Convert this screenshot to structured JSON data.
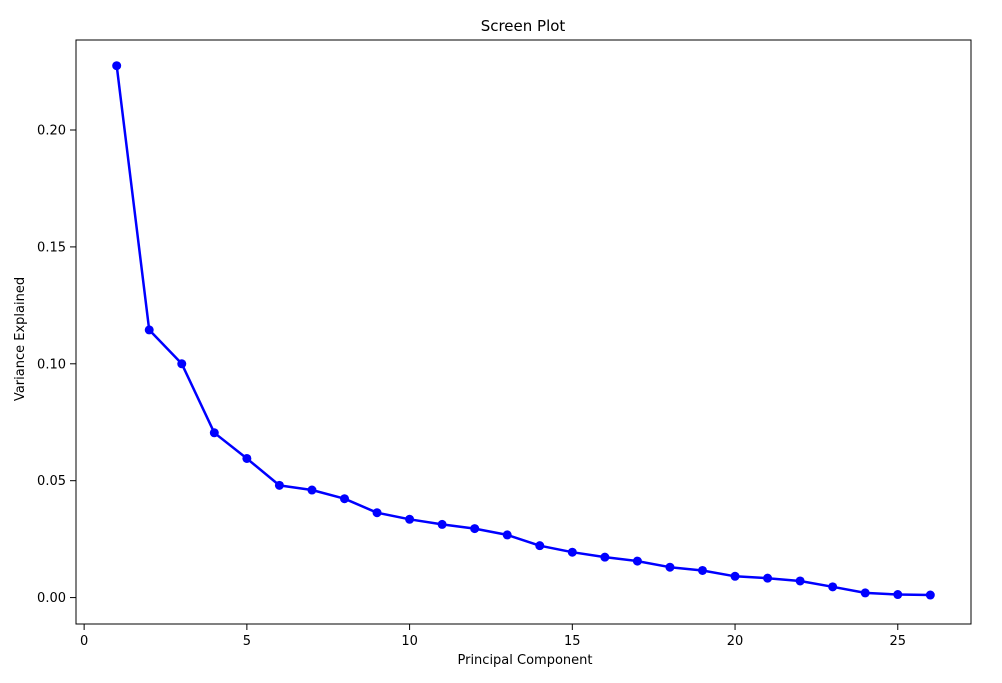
{
  "chart_data": {
    "type": "line",
    "title": "Screen Plot",
    "xlabel": "Principal Component",
    "ylabel": "Variance Explained",
    "xlim": [
      -0.25,
      27.25
    ],
    "ylim": [
      -0.0113,
      0.2385
    ],
    "xticks": [
      0,
      5,
      10,
      15,
      20,
      25
    ],
    "xtick_labels": [
      "0",
      "5",
      "10",
      "15",
      "20",
      "25"
    ],
    "yticks": [
      0.0,
      0.05,
      0.1,
      0.15,
      0.2
    ],
    "ytick_labels": [
      "0.00",
      "0.05",
      "0.10",
      "0.15",
      "0.20"
    ],
    "grid": false,
    "legend": "none",
    "series": [
      {
        "color": "#0000ff",
        "marker": "circle",
        "x": [
          1,
          2,
          3,
          4,
          5,
          6,
          7,
          8,
          9,
          10,
          11,
          12,
          13,
          14,
          15,
          16,
          17,
          18,
          19,
          20,
          21,
          22,
          23,
          24,
          25,
          26
        ],
        "y": [
          0.2275,
          0.1145,
          0.1,
          0.0705,
          0.0595,
          0.048,
          0.046,
          0.0423,
          0.0363,
          0.0335,
          0.0313,
          0.0295,
          0.0268,
          0.0222,
          0.0194,
          0.0173,
          0.0156,
          0.013,
          0.0116,
          0.0091,
          0.0083,
          0.0071,
          0.0046,
          0.002,
          0.0013,
          0.0011
        ]
      }
    ]
  }
}
